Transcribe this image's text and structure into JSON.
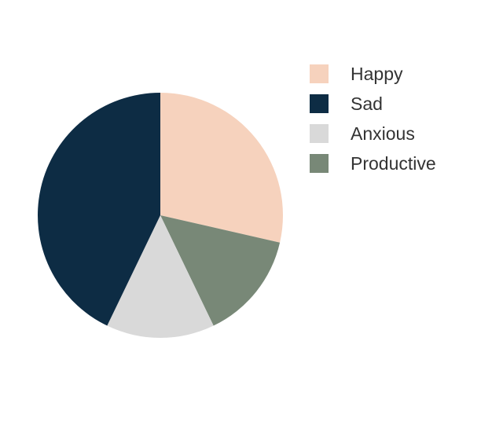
{
  "chart_data": {
    "type": "pie",
    "categories": [
      "Happy",
      "Sad",
      "Anxious",
      "Productive"
    ],
    "values": [
      30,
      45,
      15,
      15
    ],
    "colors": [
      "#f6d2bd",
      "#0d2c44",
      "#d9d9d9",
      "#788877"
    ],
    "start_angle_deg": 90,
    "direction": "counterclockwise",
    "legend_position": "right-top"
  }
}
